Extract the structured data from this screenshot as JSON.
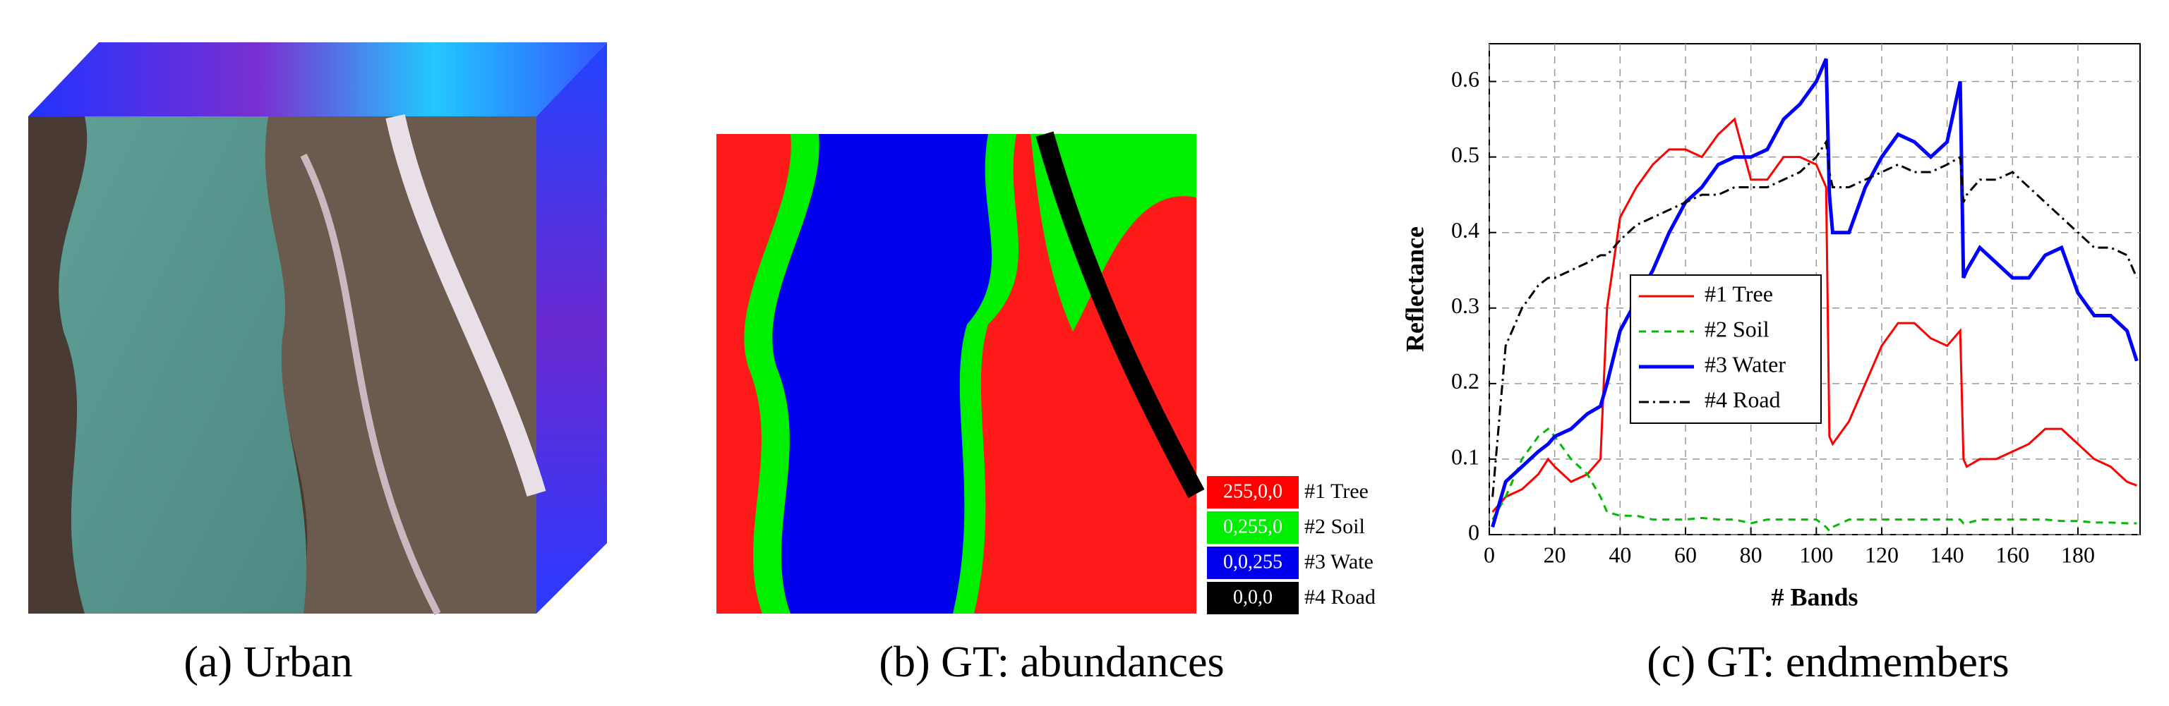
{
  "panels": [
    {
      "caption": "(a) Urban"
    },
    {
      "caption": "(b) GT: abundances",
      "legend": [
        {
          "code": "255,0,0",
          "label": "#1 Tree",
          "color": "#ff0000"
        },
        {
          "code": "0,255,0",
          "label": "#2 Soil",
          "color": "#00ee00"
        },
        {
          "code": "0,0,255",
          "label": "#3 Wate",
          "color": "#0000ee"
        },
        {
          "code": "0,0,0",
          "label": "#4 Road",
          "color": "#000000"
        }
      ]
    }
  ],
  "chart_data": {
    "type": "line",
    "caption": "(c) GT: endmembers",
    "x_label": "# Bands",
    "y_label": "Reflectance",
    "x": [
      1,
      5,
      10,
      15,
      18,
      20,
      25,
      30,
      34,
      36,
      40,
      45,
      50,
      55,
      60,
      65,
      70,
      75,
      80,
      85,
      90,
      95,
      100,
      103,
      104,
      105,
      110,
      115,
      120,
      125,
      130,
      135,
      140,
      144,
      145,
      146,
      150,
      155,
      160,
      165,
      170,
      175,
      180,
      185,
      190,
      195,
      198
    ],
    "series": [
      {
        "name": "#1 Tree",
        "color": "#ff0000",
        "linestyle": "solid",
        "linewidth": 3,
        "values": [
          0.03,
          0.05,
          0.06,
          0.08,
          0.1,
          0.09,
          0.07,
          0.08,
          0.1,
          0.3,
          0.42,
          0.46,
          0.49,
          0.51,
          0.51,
          0.5,
          0.53,
          0.55,
          0.47,
          0.47,
          0.5,
          0.5,
          0.49,
          0.46,
          0.13,
          0.12,
          0.15,
          0.2,
          0.25,
          0.28,
          0.28,
          0.26,
          0.25,
          0.27,
          0.1,
          0.09,
          0.1,
          0.1,
          0.11,
          0.12,
          0.14,
          0.14,
          0.12,
          0.1,
          0.09,
          0.07,
          0.065
        ]
      },
      {
        "name": "#2 Soil",
        "color": "#00bb00",
        "linestyle": "dashed",
        "linewidth": 3,
        "values": [
          0.02,
          0.05,
          0.1,
          0.13,
          0.14,
          0.13,
          0.1,
          0.08,
          0.05,
          0.03,
          0.025,
          0.025,
          0.02,
          0.02,
          0.02,
          0.022,
          0.02,
          0.02,
          0.015,
          0.02,
          0.02,
          0.02,
          0.02,
          0.01,
          0.005,
          0.01,
          0.02,
          0.02,
          0.02,
          0.02,
          0.02,
          0.02,
          0.02,
          0.02,
          0.015,
          0.015,
          0.02,
          0.02,
          0.02,
          0.02,
          0.02,
          0.018,
          0.018,
          0.016,
          0.016,
          0.015,
          0.015
        ]
      },
      {
        "name": "#3 Water",
        "color": "#0000ff",
        "linestyle": "solid",
        "linewidth": 5,
        "values": [
          0.01,
          0.07,
          0.09,
          0.11,
          0.12,
          0.13,
          0.14,
          0.16,
          0.17,
          0.2,
          0.27,
          0.31,
          0.35,
          0.4,
          0.44,
          0.46,
          0.49,
          0.5,
          0.5,
          0.51,
          0.55,
          0.57,
          0.6,
          0.63,
          0.45,
          0.4,
          0.4,
          0.46,
          0.5,
          0.53,
          0.52,
          0.5,
          0.52,
          0.6,
          0.34,
          0.35,
          0.38,
          0.36,
          0.34,
          0.34,
          0.37,
          0.38,
          0.32,
          0.29,
          0.29,
          0.27,
          0.23
        ]
      },
      {
        "name": "#4 Road",
        "color": "#000000",
        "linestyle": "dashdot",
        "linewidth": 3,
        "values": [
          0.05,
          0.25,
          0.3,
          0.33,
          0.34,
          0.34,
          0.35,
          0.36,
          0.37,
          0.37,
          0.39,
          0.41,
          0.42,
          0.43,
          0.44,
          0.45,
          0.45,
          0.46,
          0.46,
          0.46,
          0.47,
          0.48,
          0.5,
          0.52,
          0.48,
          0.46,
          0.46,
          0.47,
          0.48,
          0.49,
          0.48,
          0.48,
          0.49,
          0.5,
          0.44,
          0.45,
          0.47,
          0.47,
          0.48,
          0.46,
          0.44,
          0.42,
          0.4,
          0.38,
          0.38,
          0.37,
          0.34
        ]
      }
    ],
    "xlim": [
      0,
      199
    ],
    "ylim": [
      0,
      0.65
    ],
    "xticks": [
      0,
      20,
      40,
      60,
      80,
      100,
      120,
      140,
      160,
      180
    ],
    "yticks": [
      0,
      0.1,
      0.2,
      0.3,
      0.4,
      0.5,
      0.6
    ],
    "grid": true,
    "legend_loc": "center left"
  }
}
